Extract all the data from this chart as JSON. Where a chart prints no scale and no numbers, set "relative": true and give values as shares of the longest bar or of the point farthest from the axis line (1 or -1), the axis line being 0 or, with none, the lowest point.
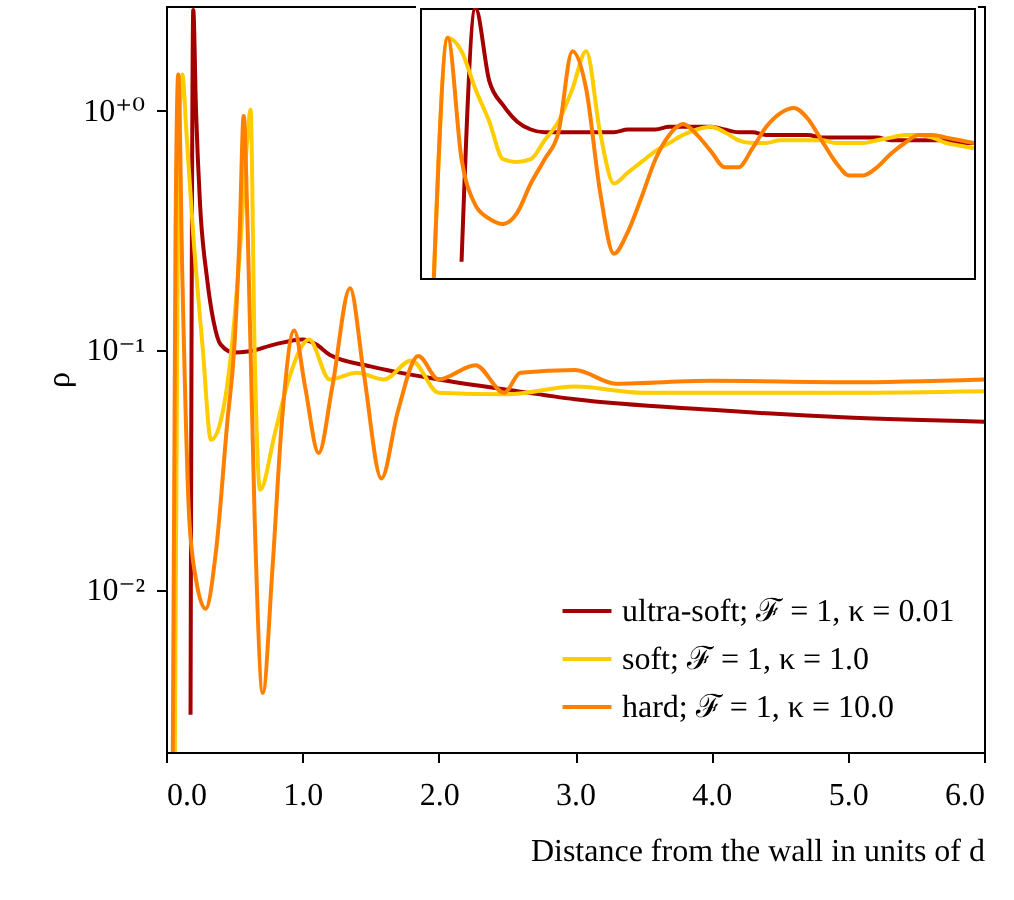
{
  "chart_data": [
    {
      "type": "line",
      "xlabel": "Distance from the wall in units of d",
      "ylabel": "ρ",
      "log": "y",
      "grid": false,
      "legend": "bottom right",
      "marker": "none",
      "line_style": "solid",
      "xlim": [
        0,
        6
      ],
      "xticks": [
        {
          "value": 0,
          "label": "0.0"
        },
        {
          "value": 1,
          "label": "1.0"
        },
        {
          "value": 2,
          "label": "2.0"
        },
        {
          "value": 3,
          "label": "3.0"
        },
        {
          "value": 4,
          "label": "4.0"
        },
        {
          "value": 5,
          "label": "5.0"
        },
        {
          "value": 6,
          "label": "6.0"
        }
      ],
      "ylim": [
        0.0021,
        2.7
      ],
      "yticks": [
        {
          "value": 0.01,
          "label": "10⁻²"
        },
        {
          "value": 0.1,
          "label": "10⁻¹"
        },
        {
          "value": 1,
          "label": "10⁺⁰"
        }
      ],
      "series": [
        {
          "name": "ultra-soft; ℱ = 1, κ = 0.01",
          "color": "#a50000",
          "x": [
            0.18,
            0.2,
            0.22,
            0.25,
            0.3,
            0.35,
            0.4,
            0.5,
            0.6,
            0.8,
            1.0,
            1.1,
            1.2,
            1.5,
            2.0,
            2.5,
            3.0,
            4.0,
            5.0,
            6.0
          ],
          "values": [
            0.003,
            2.6,
            1.0,
            0.4,
            0.2,
            0.13,
            0.105,
            0.097,
            0.098,
            0.105,
            0.11,
            0.105,
            0.095,
            0.085,
            0.075,
            0.068,
            0.062,
            0.056,
            0.052,
            0.05
          ]
        },
        {
          "name": "soft; ℱ = 1, κ = 1.0",
          "color": "#ffcc00",
          "x": [
            0.065,
            0.09,
            0.12,
            0.15,
            0.2,
            0.27,
            0.33,
            0.4,
            0.5,
            0.55,
            0.6,
            0.62,
            0.65,
            0.69,
            0.8,
            0.9,
            1.05,
            1.2,
            1.4,
            1.6,
            1.8,
            2.0,
            2.5,
            3.0,
            3.5,
            4.0,
            5.0,
            6.0
          ],
          "values": [
            0.0021,
            0.6,
            1.4,
            0.8,
            0.3,
            0.1,
            0.042,
            0.05,
            0.13,
            0.3,
            0.8,
            1.0,
            0.1,
            0.026,
            0.045,
            0.075,
            0.11,
            0.075,
            0.08,
            0.075,
            0.09,
            0.066,
            0.065,
            0.07,
            0.066,
            0.066,
            0.066,
            0.067
          ]
        },
        {
          "name": "hard; ℱ = 1, κ = 10.0",
          "color": "#ff8000",
          "x": [
            0.05,
            0.07,
            0.09,
            0.12,
            0.17,
            0.22,
            0.29,
            0.37,
            0.45,
            0.5,
            0.54,
            0.57,
            0.6,
            0.65,
            0.71,
            0.78,
            0.85,
            0.94,
            1.02,
            1.12,
            1.22,
            1.35,
            1.45,
            1.58,
            1.7,
            1.85,
            2.0,
            2.27,
            2.48,
            2.6,
            3.0,
            3.3,
            4.0,
            5.0,
            6.0
          ],
          "values": [
            0.0021,
            0.3,
            1.4,
            0.2,
            0.02,
            0.011,
            0.0083,
            0.015,
            0.05,
            0.1,
            0.3,
            0.94,
            0.3,
            0.02,
            0.0037,
            0.012,
            0.05,
            0.12,
            0.07,
            0.037,
            0.07,
            0.18,
            0.08,
            0.029,
            0.055,
            0.094,
            0.075,
            0.086,
            0.066,
            0.08,
            0.082,
            0.072,
            0.074,
            0.073,
            0.075
          ]
        }
      ]
    },
    {
      "type": "line",
      "grid": false,
      "marker": "none",
      "line_style": "solid",
      "relative": true,
      "categories": [
        null,
        null,
        null,
        null,
        null,
        null,
        null,
        null,
        null,
        null,
        null,
        null,
        null,
        null,
        null,
        null,
        null,
        null,
        null,
        null,
        null,
        null,
        null,
        null,
        null,
        null,
        null,
        null,
        null,
        null,
        null,
        null,
        null,
        null,
        null,
        null,
        null,
        null,
        null,
        null,
        null
      ],
      "series": [
        {
          "color": "#a50000",
          "values": [
            null,
            null,
            null,
            0.06,
            1,
            0.73,
            0.64,
            0.58,
            0.55,
            0.54,
            0.54,
            0.54,
            0.54,
            0.54,
            0.54,
            0.55,
            0.55,
            0.55,
            0.56,
            0.56,
            0.56,
            0.56,
            0.55,
            0.54,
            0.54,
            0.53,
            0.53,
            0.53,
            0.53,
            0.52,
            0.52,
            0.52,
            0.52,
            0.52,
            0.51,
            0.51,
            0.51,
            0.51,
            0.51,
            0.5,
            0.5
          ]
        },
        {
          "color": "#ffcc00",
          "values": [
            null,
            0,
            0.89,
            0.84,
            0.7,
            0.58,
            0.44,
            0.43,
            0.44,
            0.51,
            0.58,
            0.7,
            0.84,
            0.54,
            0.35,
            0.39,
            0.43,
            0.47,
            0.5,
            0.53,
            0.55,
            0.56,
            0.54,
            0.51,
            0.5,
            0.5,
            0.51,
            0.51,
            0.51,
            0.51,
            0.5,
            0.5,
            0.5,
            0.51,
            0.52,
            0.53,
            0.53,
            0.52,
            0.5,
            0.49,
            0.48
          ]
        },
        {
          "color": "#ff8000",
          "values": [
            null,
            0,
            0.89,
            0.44,
            0.27,
            0.22,
            0.2,
            0.24,
            0.35,
            0.44,
            0.54,
            0.84,
            0.7,
            0.32,
            0.09,
            0.17,
            0.3,
            0.44,
            0.53,
            0.57,
            0.53,
            0.47,
            0.41,
            0.41,
            0.48,
            0.56,
            0.61,
            0.63,
            0.59,
            0.51,
            0.43,
            0.38,
            0.38,
            0.41,
            0.46,
            0.5,
            0.53,
            0.53,
            0.52,
            0.51,
            0.5
          ]
        }
      ]
    }
  ]
}
